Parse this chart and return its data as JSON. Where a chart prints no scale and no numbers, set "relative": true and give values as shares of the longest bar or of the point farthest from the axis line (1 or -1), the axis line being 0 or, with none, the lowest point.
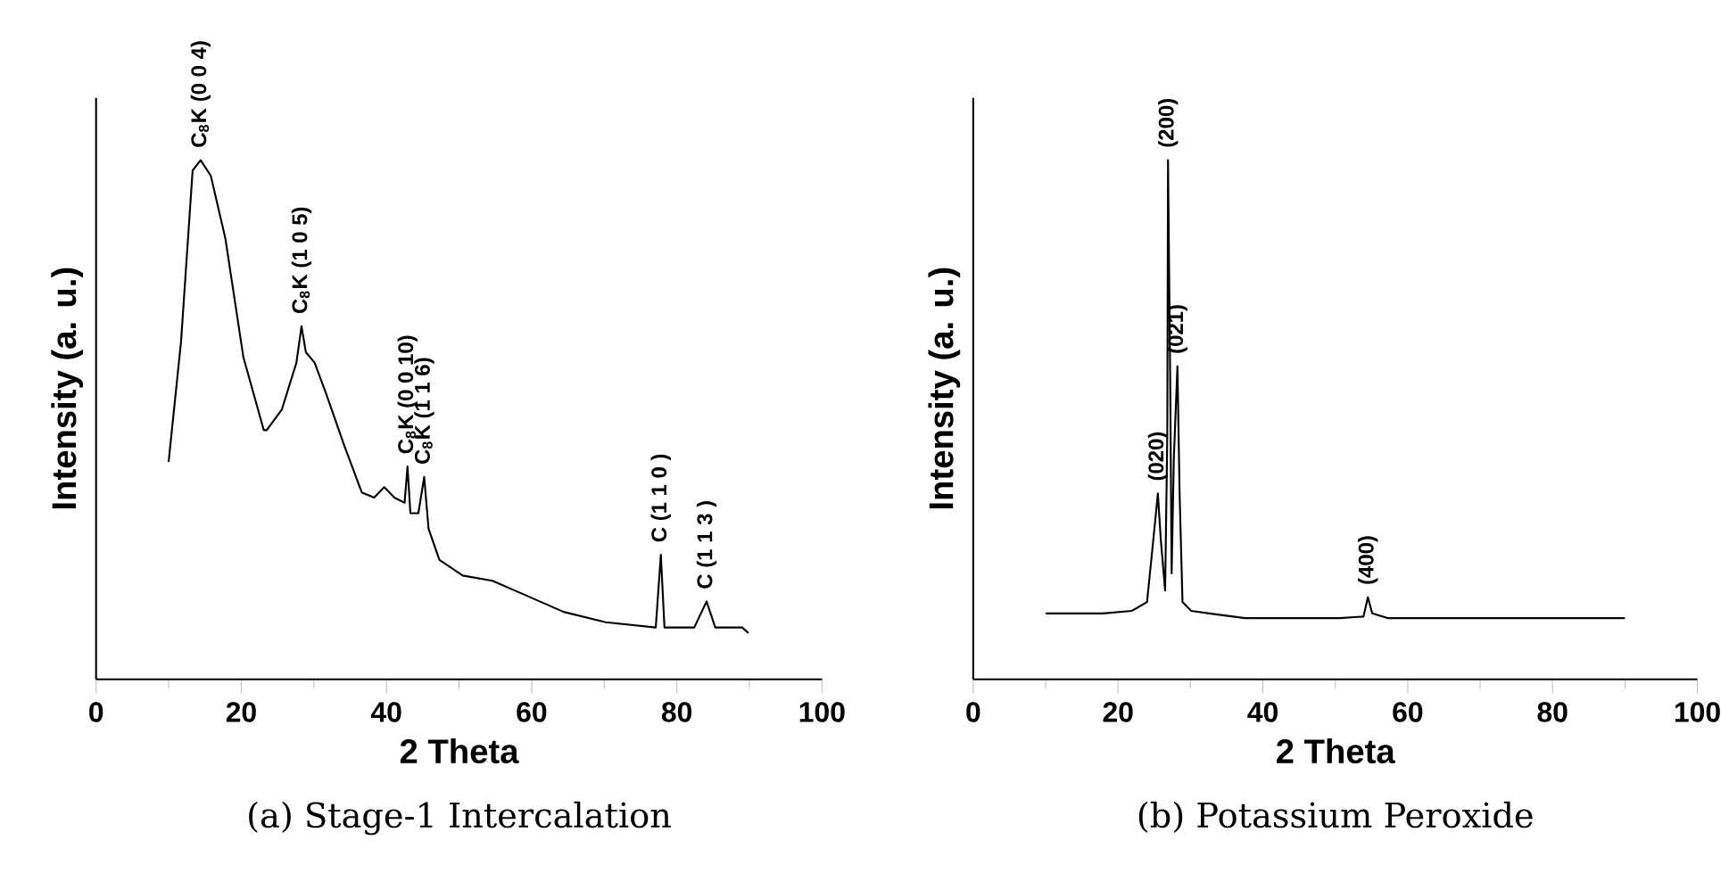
{
  "chart_data": [
    {
      "type": "line",
      "title": "(a) Stage-1 Intercalation",
      "xlabel": "2 Theta",
      "ylabel": "Intensity (a. u.)",
      "relative": true,
      "xlim": [
        0,
        100
      ],
      "xticks": [
        0,
        20,
        40,
        60,
        80,
        100
      ],
      "series": [
        {
          "color": "#000000",
          "x": [
            10,
            11.7,
            13.3,
            14.4,
            15.8,
            17.8,
            20.3,
            23.1,
            23.5,
            25.6,
            27.6,
            28.3,
            28.9,
            30.1,
            31.7,
            34.2,
            36.6,
            38.3,
            39.7,
            41.1,
            42.5,
            42.9,
            43.3,
            44.4,
            45.2,
            45.8,
            47.3,
            50.5,
            54.6,
            59.5,
            64.4,
            70.2,
            77.1,
            77.8,
            78.3,
            82.4,
            84.1,
            85.3,
            89,
            89.8
          ],
          "values": [
            0.42,
            0.65,
            0.98,
            1,
            0.97,
            0.85,
            0.62,
            0.48,
            0.48,
            0.52,
            0.61,
            0.68,
            0.63,
            0.61,
            0.55,
            0.45,
            0.36,
            0.35,
            0.37,
            0.35,
            0.34,
            0.41,
            0.32,
            0.32,
            0.39,
            0.29,
            0.23,
            0.2,
            0.19,
            0.16,
            0.13,
            0.11,
            0.1,
            0.24,
            0.1,
            0.1,
            0.15,
            0.1,
            0.1,
            0.09
          ]
        }
      ],
      "annotations": [
        {
          "text": "C$_{8}$K (0 0 4)",
          "x": 14.4,
          "y": 1
        },
        {
          "text": "C$_{8}$K (1 0 5)",
          "x": 28.3,
          "y": 0.68
        },
        {
          "text": "C$_{8}$K (0 0 10)",
          "x": 42.9,
          "y": 0.41
        },
        {
          "text": "C$_{8}$K (1 1 6)",
          "x": 45.2,
          "y": 0.39
        },
        {
          "text": "C (1 1 0 )",
          "x": 77.8,
          "y": 0.24
        },
        {
          "text": "C (1 1 3 )",
          "x": 84.1,
          "y": 0.15
        }
      ]
    },
    {
      "type": "line",
      "title": "(b) Potassium Peroxide",
      "xlabel": "2 Theta",
      "ylabel": "Intensity (a. u.)",
      "relative": true,
      "xlim": [
        0,
        100
      ],
      "xticks": [
        0,
        20,
        40,
        60,
        80,
        100
      ],
      "series": [
        {
          "color": "#000000",
          "x": [
            10.1,
            17.9,
            21.9,
            24,
            24.8,
            25.5,
            25.9,
            26.5,
            26.8,
            26.9,
            27.2,
            27.4,
            27.7,
            28.2,
            28.5,
            28.9,
            30.1,
            32.6,
            37.5,
            50.6,
            53.9,
            54.5,
            55.1,
            57.2,
            89.9
          ],
          "values": [
            0.127,
            0.127,
            0.132,
            0.149,
            0.259,
            0.358,
            0.27,
            0.171,
            0.469,
            1,
            0.579,
            0.204,
            0.424,
            0.603,
            0.358,
            0.149,
            0.132,
            0.127,
            0.118,
            0.118,
            0.121,
            0.158,
            0.127,
            0.118,
            0.118
          ]
        }
      ],
      "annotations": [
        {
          "text": "(020)",
          "x": 25.5,
          "y": 0.358
        },
        {
          "text": "(200)",
          "x": 26.9,
          "y": 1
        },
        {
          "text": "(021)",
          "x": 28.2,
          "y": 0.603
        },
        {
          "text": "(400)",
          "x": 54.5,
          "y": 0.158
        }
      ]
    }
  ]
}
